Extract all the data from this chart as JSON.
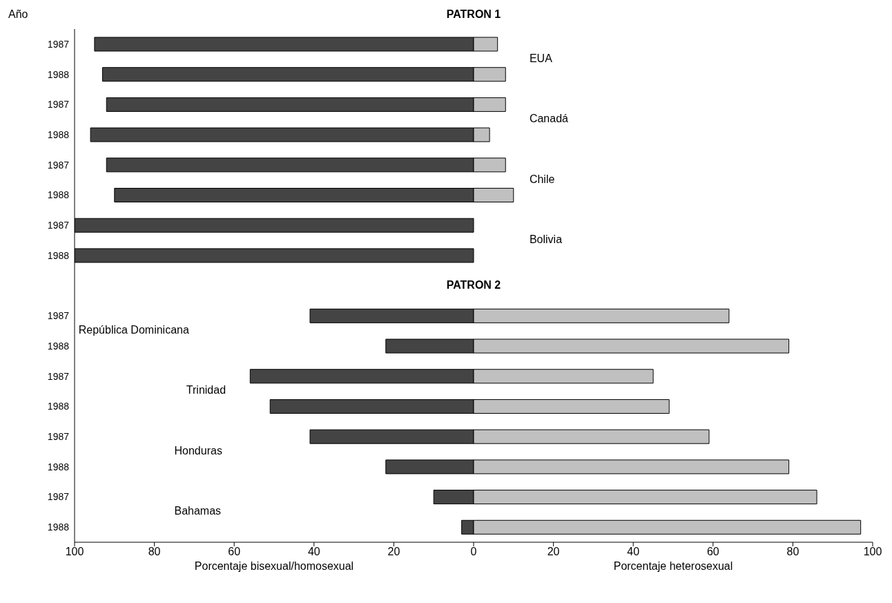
{
  "chart_data": {
    "type": "bar",
    "orientation": "horizontal",
    "stacked": true,
    "title": "PATRON 1",
    "ylabel": "Año",
    "xlabel": "Porcentaje bisexual/homosexual",
    "annotations": [
      "PATRON 2",
      "EUA",
      "Canadá",
      "Chile",
      "Bolivia",
      "República Dominicana",
      "Trinidad",
      "Honduras",
      "Bahamas",
      "Porcentaje heterosexual"
    ],
    "categories": [
      "1987",
      "1988",
      "1987",
      "1988",
      "1987",
      "1988",
      "1987",
      "1988",
      null,
      "1987",
      "1988",
      "1987",
      "1988",
      "1987",
      "1988",
      "1987",
      "1988"
    ],
    "series": [
      {
        "color": "#444444",
        "values": [
          -95,
          -93,
          -92,
          -96,
          -92,
          -90,
          -100,
          -100,
          null,
          -41,
          -22,
          -56,
          -51,
          -41,
          -22,
          -10,
          -3
        ]
      },
      {
        "color": "#c0c0c0",
        "values": [
          6,
          8,
          8,
          4,
          8,
          10,
          0,
          0,
          null,
          64,
          79,
          45,
          49,
          59,
          79,
          86,
          97
        ]
      }
    ],
    "xlim": [
      -100,
      100
    ],
    "xticks": [
      {
        "value": -100,
        "label": "100"
      },
      {
        "value": -80,
        "label": "80"
      },
      {
        "value": -60,
        "label": "60"
      },
      {
        "value": -40,
        "label": "40"
      },
      {
        "value": -20,
        "label": "20"
      },
      0,
      20,
      40,
      60,
      80,
      100
    ]
  }
}
